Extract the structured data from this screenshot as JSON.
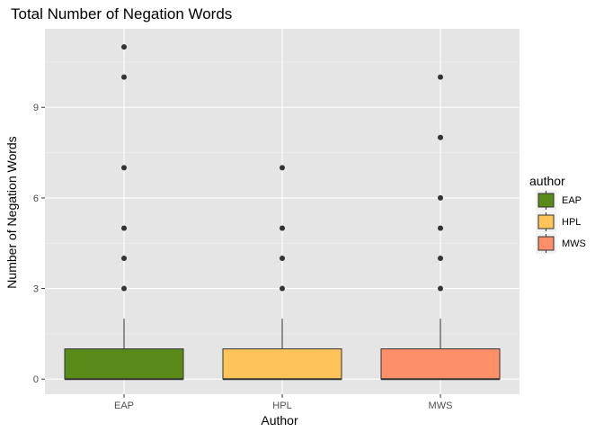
{
  "chart_data": {
    "type": "boxplot",
    "title": "Total Number of Negation Words",
    "xlabel": "Author",
    "ylabel": "Number of Negation Words",
    "categories": [
      "EAP",
      "HPL",
      "MWS"
    ],
    "ylim": [
      -0.5,
      11.6
    ],
    "yticks": [
      0,
      3,
      6,
      9
    ],
    "grid": true,
    "legend": {
      "title": "author",
      "position": "right",
      "entries": [
        "EAP",
        "HPL",
        "MWS"
      ]
    },
    "series": [
      {
        "name": "EAP",
        "color": "#5a8a1a",
        "min": 0,
        "q1": 0,
        "median": 0,
        "q3": 1,
        "max": 2,
        "outliers": [
          3,
          4,
          5,
          7,
          10,
          11
        ]
      },
      {
        "name": "HPL",
        "color": "#fdc45a",
        "min": 0,
        "q1": 0,
        "median": 0,
        "q3": 1,
        "max": 2,
        "outliers": [
          3,
          4,
          5,
          7
        ]
      },
      {
        "name": "MWS",
        "color": "#fd8f69",
        "min": 0,
        "q1": 0,
        "median": 0,
        "q3": 1,
        "max": 2,
        "outliers": [
          3,
          4,
          5,
          6,
          8,
          10
        ]
      }
    ]
  }
}
